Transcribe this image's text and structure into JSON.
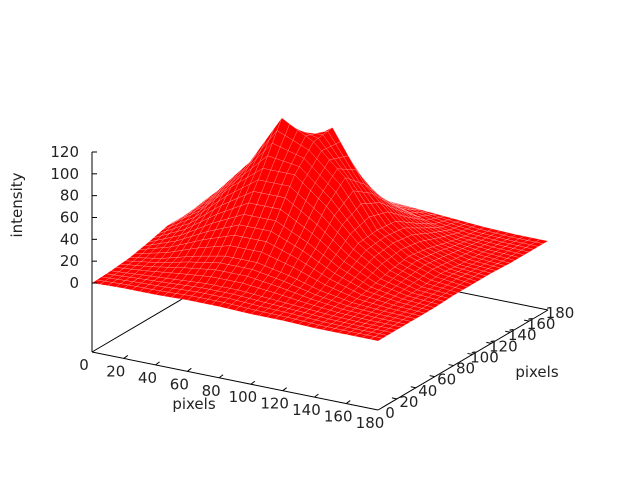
{
  "chart_data": {
    "type": "surface",
    "title": "",
    "xlabel": "pixels",
    "ylabel": "pixels",
    "zlabel": "intensity",
    "xlim": [
      0,
      180
    ],
    "ylim": [
      0,
      180
    ],
    "zlim": [
      0,
      120
    ],
    "xticks": [
      "0",
      "20",
      "40",
      "60",
      "80",
      "100",
      "120",
      "140",
      "160",
      "180"
    ],
    "yticks": [
      "0",
      "20",
      "40",
      "60",
      "80",
      "100",
      "120",
      "140",
      "160",
      "180"
    ],
    "zticks": [
      "0",
      "20",
      "40",
      "60",
      "80",
      "100",
      "120"
    ],
    "grid_x": [
      0,
      20,
      40,
      60,
      80,
      100,
      120,
      140,
      160,
      180
    ],
    "grid_y": [
      0,
      20,
      40,
      60,
      80,
      100,
      120,
      140,
      160,
      180
    ],
    "z_rows_by_y": [
      [
        0,
        1,
        1,
        2,
        2,
        1,
        1,
        0,
        0,
        0
      ],
      [
        1,
        3,
        5,
        7,
        7,
        5,
        3,
        1,
        0,
        0
      ],
      [
        3,
        8,
        16,
        22,
        22,
        16,
        8,
        3,
        1,
        0
      ],
      [
        7,
        19,
        36,
        50,
        50,
        36,
        19,
        7,
        2,
        0
      ],
      [
        12,
        31,
        59,
        82,
        82,
        59,
        31,
        12,
        3,
        1
      ],
      [
        12,
        40,
        72,
        118,
        102,
        75,
        33,
        15,
        5,
        1
      ],
      [
        12,
        31,
        59,
        85,
        105,
        59,
        31,
        12,
        3,
        1
      ],
      [
        7,
        19,
        36,
        50,
        50,
        36,
        19,
        7,
        2,
        0
      ],
      [
        3,
        8,
        16,
        22,
        22,
        16,
        8,
        3,
        1,
        0
      ],
      [
        1,
        3,
        5,
        7,
        7,
        5,
        3,
        1,
        0,
        0
      ]
    ],
    "surface_color": "#ff0000",
    "grid": false,
    "legend": "none"
  }
}
